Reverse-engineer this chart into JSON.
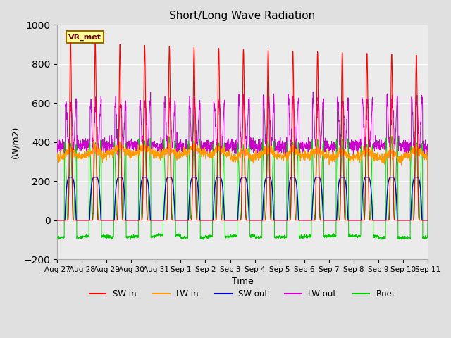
{
  "title": "Short/Long Wave Radiation",
  "xlabel": "Time",
  "ylabel": "(W/m2)",
  "ylim": [
    -200,
    1000
  ],
  "yticks": [
    -200,
    0,
    200,
    400,
    600,
    800,
    1000
  ],
  "x_tick_labels": [
    "Aug 27",
    "Aug 28",
    "Aug 29",
    "Aug 30",
    "Aug 31",
    "Sep 1",
    "Sep 2",
    "Sep 3",
    "Sep 4",
    "Sep 5",
    "Sep 6",
    "Sep 7",
    "Sep 8",
    "Sep 9",
    "Sep 10",
    "Sep 11"
  ],
  "bg_color": "#e0e0e0",
  "plot_bg": "#ebebeb",
  "colors": {
    "SW_in": "#ff0000",
    "LW_in": "#ff9900",
    "SW_out": "#0000cc",
    "LW_out": "#cc00cc",
    "Rnet": "#00cc00"
  },
  "legend_labels": [
    "SW in",
    "LW in",
    "SW out",
    "LW out",
    "Rnet"
  ],
  "annotation_text": "VR_met"
}
